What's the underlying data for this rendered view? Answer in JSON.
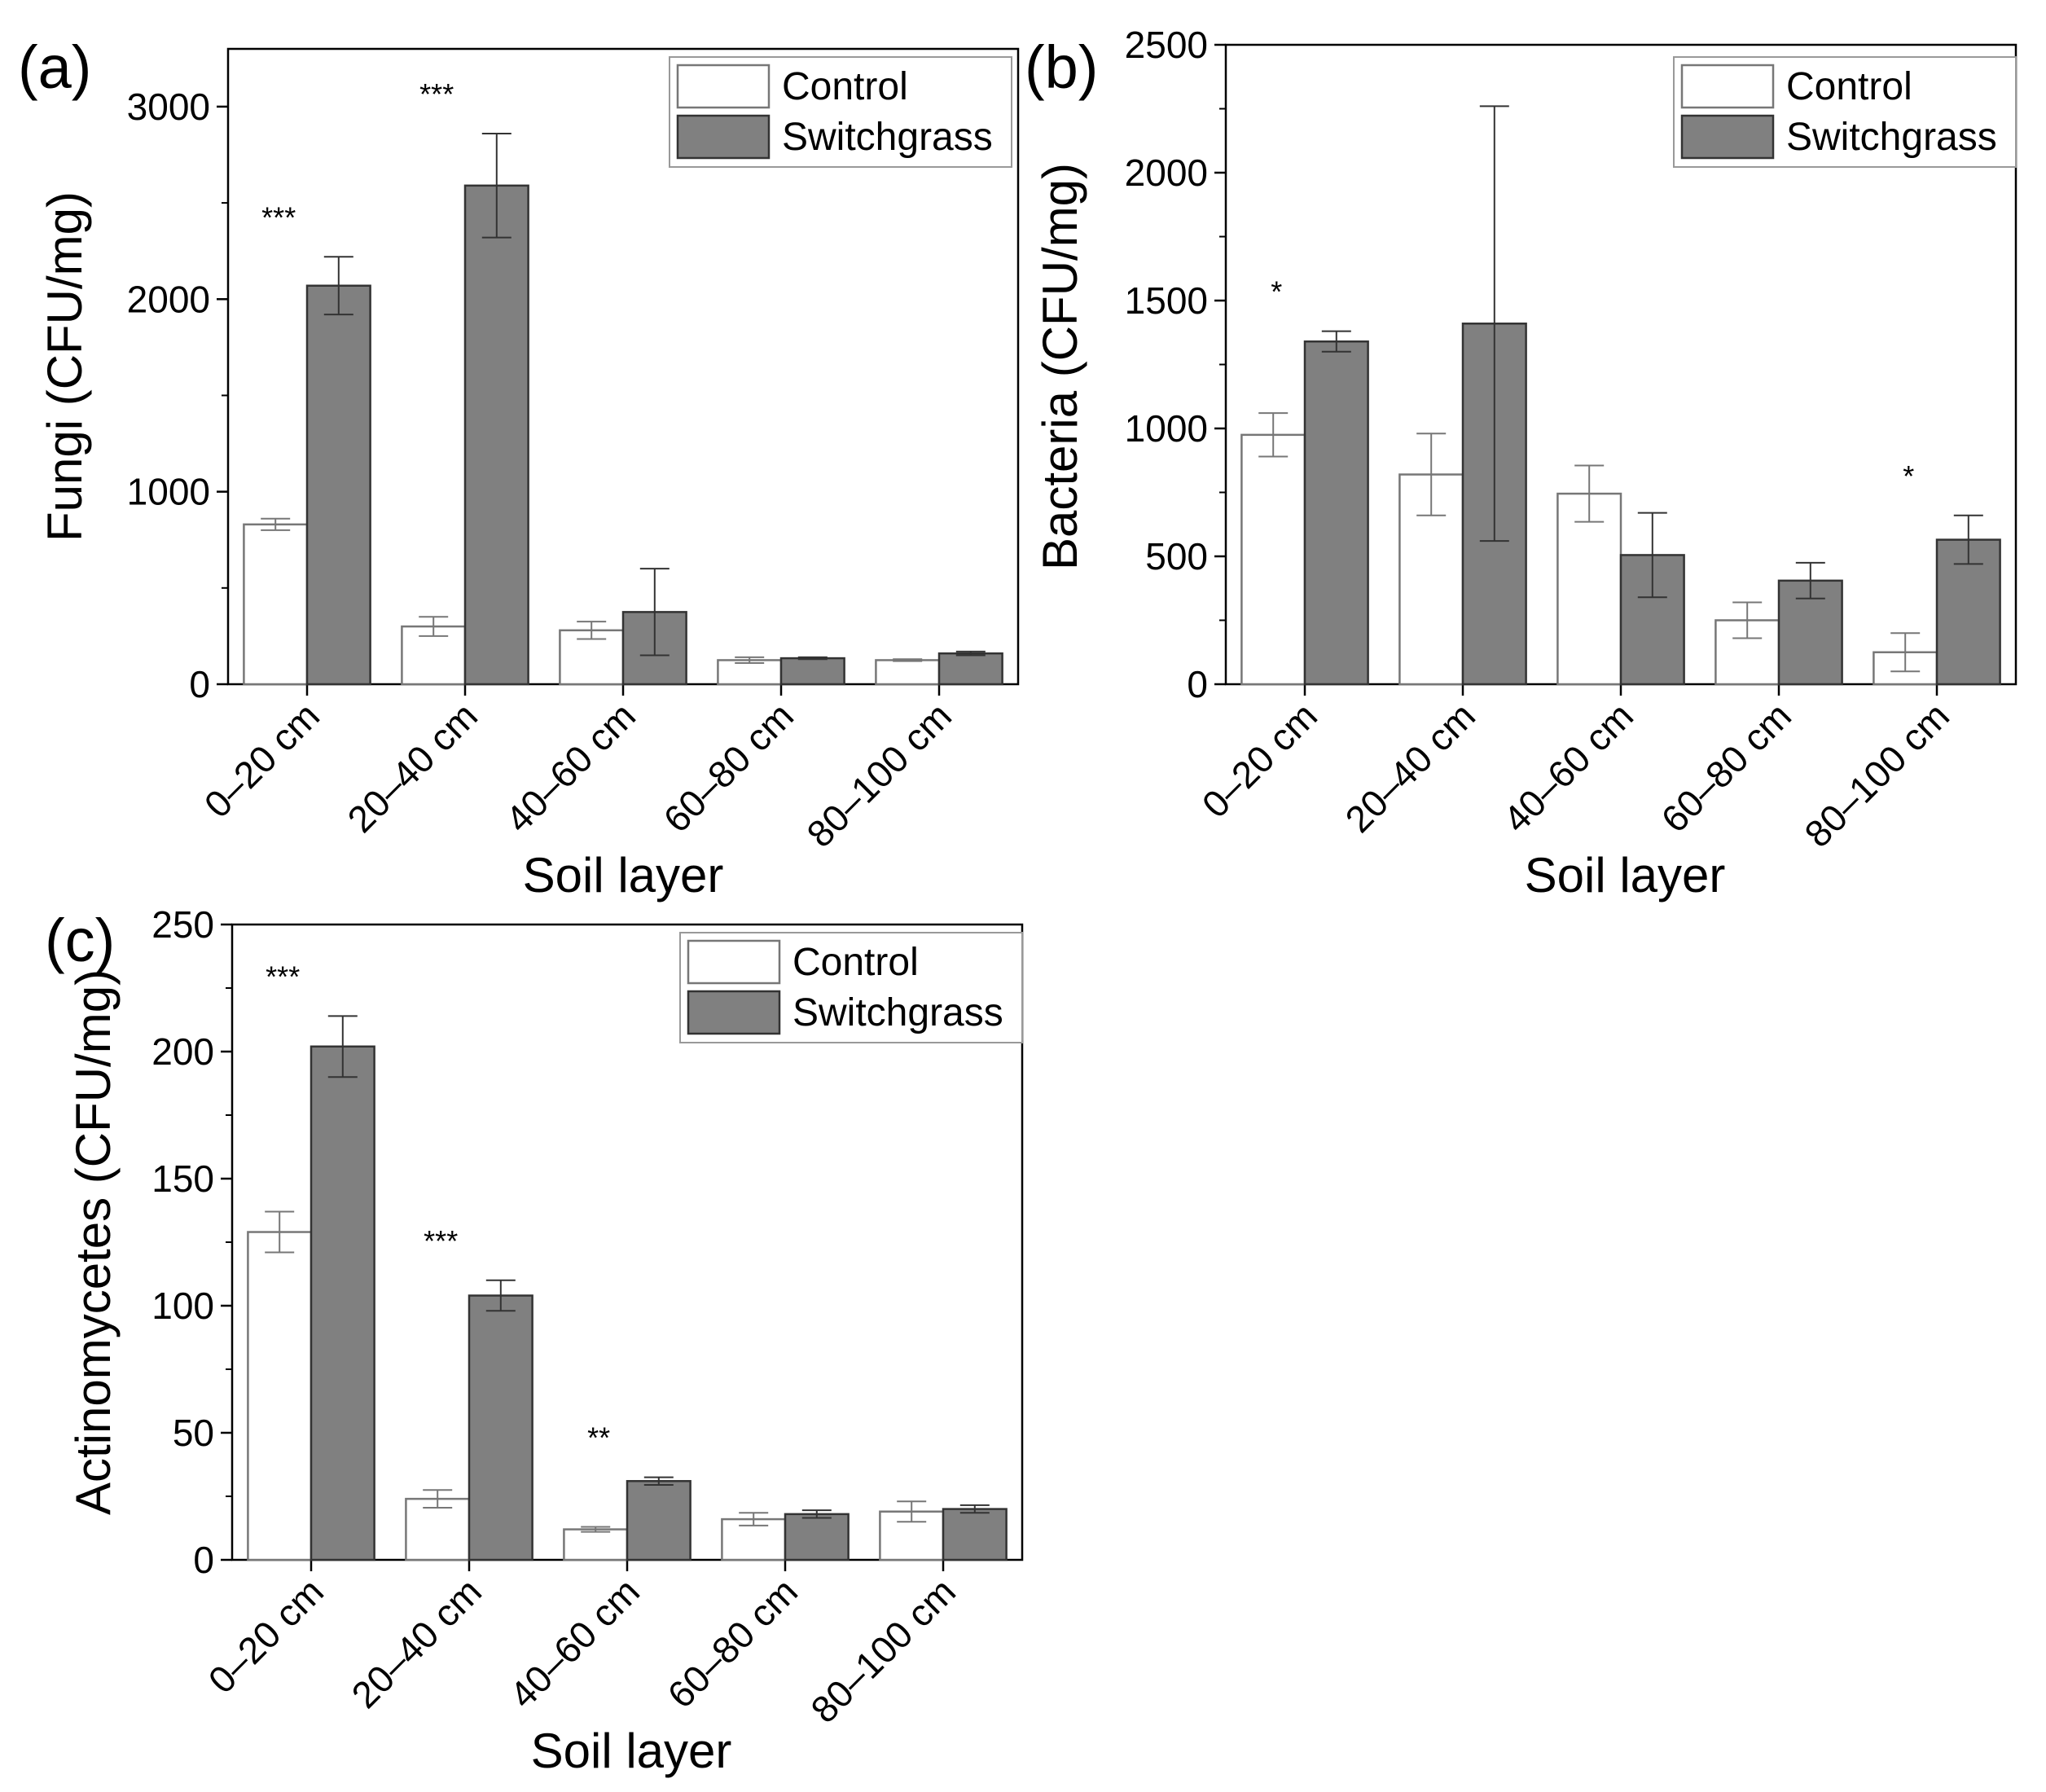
{
  "chart_data": [
    {
      "panel": "(a)",
      "type": "bar",
      "xlabel": "Soil layer",
      "ylabel": "Fungi (CFU/mg)",
      "ylim": [
        0,
        3300
      ],
      "yticks": [
        0,
        1000,
        2000,
        3000
      ],
      "categories": [
        "0–20 cm",
        "20–40 cm",
        "40–60 cm",
        "60–80 cm",
        "80–100 cm"
      ],
      "series": [
        {
          "name": "Control",
          "color": "#ffffff",
          "values": [
            830,
            300,
            280,
            125,
            125
          ],
          "errors": [
            30,
            50,
            45,
            15,
            5
          ]
        },
        {
          "name": "Switchgrass",
          "color": "#808080",
          "values": [
            2070,
            2590,
            375,
            135,
            160
          ],
          "errors": [
            150,
            270,
            225,
            5,
            10
          ]
        }
      ],
      "significance": [
        "***",
        "***",
        "",
        "",
        ""
      ],
      "legend": "top-right"
    },
    {
      "panel": "(b)",
      "type": "bar",
      "xlabel": "Soil layer",
      "ylabel": "Bacteria (CFU/mg)",
      "ylim": [
        0,
        2500
      ],
      "yticks": [
        0,
        500,
        1000,
        1500,
        2000,
        2500
      ],
      "categories": [
        "0–20 cm",
        "20–40 cm",
        "40–60 cm",
        "60–80 cm",
        "80–100 cm"
      ],
      "series": [
        {
          "name": "Control",
          "color": "#ffffff",
          "values": [
            975,
            820,
            745,
            250,
            125
          ],
          "errors": [
            85,
            160,
            110,
            70,
            75
          ]
        },
        {
          "name": "Switchgrass",
          "color": "#808080",
          "values": [
            1340,
            1410,
            505,
            405,
            565
          ],
          "errors": [
            40,
            850,
            165,
            70,
            95
          ]
        }
      ],
      "significance": [
        "*",
        "",
        "",
        "",
        "*"
      ],
      "legend": "top-right"
    },
    {
      "panel": "(c)",
      "type": "bar",
      "xlabel": "Soil layer",
      "ylabel": "Actinomycetes (CFU/mg)",
      "ylim": [
        0,
        250
      ],
      "yticks": [
        0,
        50,
        100,
        150,
        200,
        250
      ],
      "categories": [
        "0–20 cm",
        "20–40 cm",
        "40–60 cm",
        "60–80 cm",
        "80–100 cm"
      ],
      "series": [
        {
          "name": "Control",
          "color": "#ffffff",
          "values": [
            129,
            24,
            12,
            16,
            19
          ],
          "errors": [
            8,
            3.5,
            1,
            2.5,
            4
          ]
        },
        {
          "name": "Switchgrass",
          "color": "#808080",
          "values": [
            202,
            104,
            31,
            18,
            20
          ],
          "errors": [
            12,
            6,
            1.5,
            1.5,
            1.5
          ]
        }
      ],
      "significance": [
        "***",
        "***",
        "**",
        "",
        ""
      ],
      "legend": "top-right"
    }
  ]
}
